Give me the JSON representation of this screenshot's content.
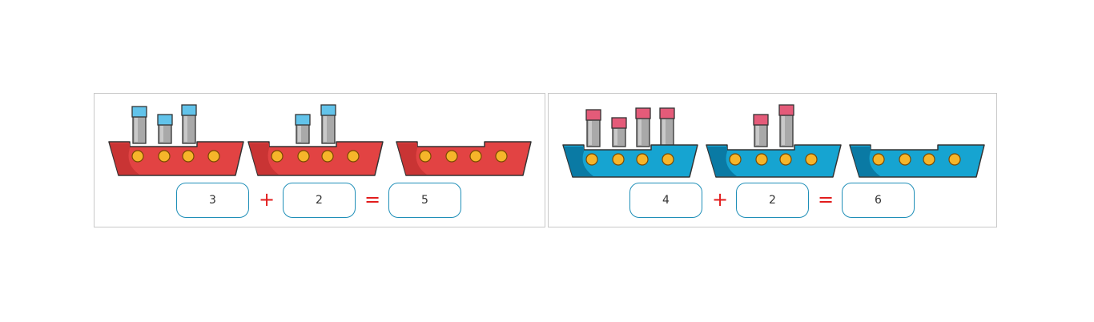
{
  "palette": {
    "red_hull": "#e24343",
    "red_hull_dark": "#c93434",
    "blue_hull": "#16a4d1",
    "blue_hull_dark": "#0a7aa4",
    "blue_cap": "#62c3ea",
    "pink_cap": "#e45b79",
    "funnel_gray": "#a9a9a9",
    "porthole": "#f6b52a",
    "operator_color": "#e21d1d",
    "box_border": "#1f8fb8"
  },
  "exercises": [
    {
      "theme": "red",
      "ships": [
        {
          "funnels": 3,
          "portholes": 4
        },
        {
          "funnels": 2,
          "portholes": 4
        },
        {
          "funnels": 0,
          "portholes": 4
        }
      ],
      "equation": {
        "left": "3",
        "operator": "+",
        "right": "2",
        "equals": "=",
        "result": "5"
      }
    },
    {
      "theme": "blue",
      "ships": [
        {
          "funnels": 4,
          "portholes": 4
        },
        {
          "funnels": 2,
          "portholes": 4
        },
        {
          "funnels": 0,
          "portholes": 4
        }
      ],
      "equation": {
        "left": "4",
        "operator": "+",
        "right": "2",
        "equals": "=",
        "result": "6"
      }
    }
  ]
}
